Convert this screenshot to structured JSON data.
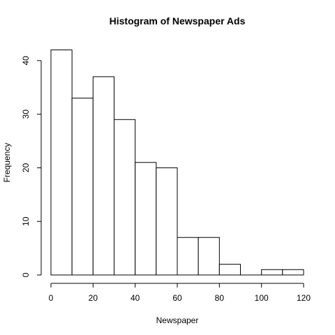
{
  "chart_data": {
    "type": "bar",
    "title": "Histogram of Newspaper Ads",
    "xlabel": "Newspaper",
    "ylabel": "Frequency",
    "bins": [
      {
        "from": 0,
        "to": 10,
        "count": 42
      },
      {
        "from": 10,
        "to": 20,
        "count": 33
      },
      {
        "from": 20,
        "to": 30,
        "count": 37
      },
      {
        "from": 30,
        "to": 40,
        "count": 29
      },
      {
        "from": 40,
        "to": 50,
        "count": 21
      },
      {
        "from": 50,
        "to": 60,
        "count": 20
      },
      {
        "from": 60,
        "to": 70,
        "count": 7
      },
      {
        "from": 70,
        "to": 80,
        "count": 7
      },
      {
        "from": 80,
        "to": 90,
        "count": 2
      },
      {
        "from": 90,
        "to": 100,
        "count": 0
      },
      {
        "from": 100,
        "to": 110,
        "count": 1
      },
      {
        "from": 110,
        "to": 120,
        "count": 1
      }
    ],
    "xlim": [
      0,
      120
    ],
    "ylim": [
      0,
      42
    ],
    "xticks": [
      "0",
      "20",
      "40",
      "60",
      "80",
      "100",
      "120"
    ],
    "yticks": [
      "0",
      "10",
      "20",
      "30",
      "40"
    ],
    "grid": false,
    "bar_fill": "#ffffff",
    "bar_stroke": "#000000"
  }
}
